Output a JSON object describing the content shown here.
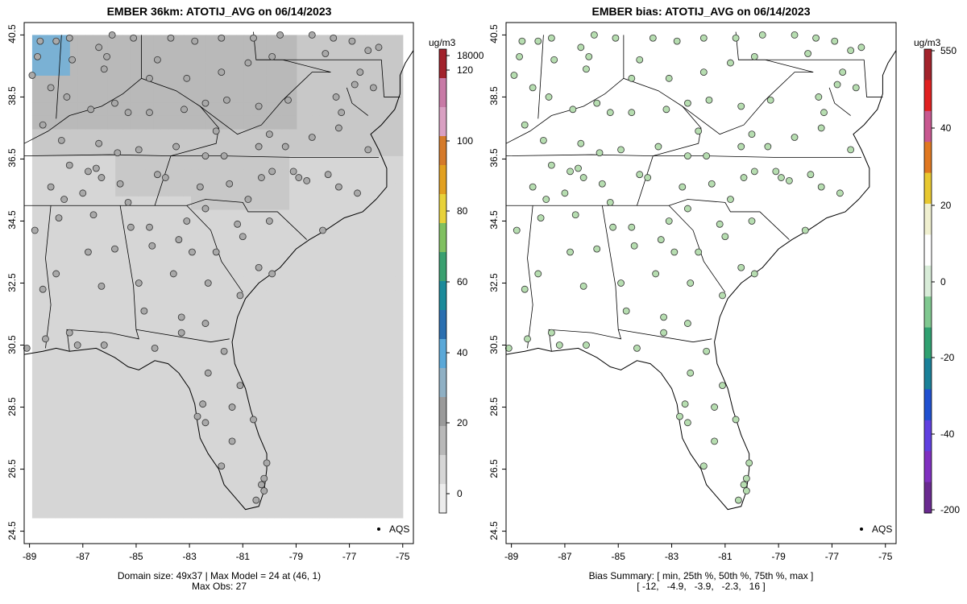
{
  "left_panel": {
    "title": "EMBER 36km: ATOTIJ_AVG on 06/14/2023",
    "caption_line1": "Domain size: 49x37 | Max Model = 24 at (46, 1)",
    "caption_line2": "Max Obs: 27",
    "legend_marker_label": "AQS"
  },
  "right_panel": {
    "title": "EMBER bias: ATOTIJ_AVG on 06/14/2023",
    "caption_line1": "Bias Summary: [ min, 25th %, 50th %, 75th %, max ]",
    "caption_line2": "[ -12,   -4.9,   -3.9,   -2.3,   16 ]",
    "legend_marker_label": "AQS"
  },
  "axes": {
    "x_ticks": [
      "-89",
      "-87",
      "-85",
      "-83",
      "-81",
      "-79",
      "-77",
      "-75"
    ],
    "x_values": [
      -89,
      -87,
      -85,
      -83,
      -81,
      -79,
      -77,
      -75
    ],
    "y_ticks": [
      "24.5",
      "26.5",
      "28.5",
      "30.5",
      "32.5",
      "34.5",
      "36.5",
      "38.5",
      "40.5"
    ],
    "y_values": [
      24.5,
      26.5,
      28.5,
      30.5,
      32.5,
      34.5,
      36.5,
      38.5,
      40.5
    ],
    "xlim": [
      -89.2,
      -74.6
    ],
    "ylim": [
      24.1,
      40.9
    ]
  },
  "left_colorbar": {
    "unit": "ug/m3",
    "labels": [
      "18000",
      "120",
      "100",
      "80",
      "60",
      "40",
      "20",
      "0"
    ],
    "colors": [
      "#a2222b",
      "#c87aa6",
      "#d9a0c2",
      "#d57a2a",
      "#e2a020",
      "#e8d23a",
      "#80c060",
      "#3aa070",
      "#1a8a9a",
      "#2a6fb0",
      "#5aa8d8",
      "#8fb0c4",
      "#9a9a9a",
      "#b8b8b8",
      "#d6d6d6",
      "#ececec"
    ]
  },
  "right_colorbar": {
    "unit": "ug/m3",
    "labels": [
      "550",
      "40",
      "20",
      "0",
      "-20",
      "-40",
      "-200"
    ],
    "colors": [
      "#a2222b",
      "#e02020",
      "#c85890",
      "#e07820",
      "#e8c830",
      "#f0f0d0",
      "#ffffff",
      "#d8ecd8",
      "#80c890",
      "#30a070",
      "#1a8098",
      "#2050d0",
      "#6040e0",
      "#8030c0",
      "#6a2a90"
    ]
  },
  "map_colors": {
    "background_grid": "#d6d6d6",
    "dark_grid": "#b9b9b9",
    "mid_grid": "#c8c8c8",
    "blue_cells": "#7ab1d4",
    "station_fill_left": "#a9a9a9",
    "station_fill_right": "#b6ddb0"
  }
}
